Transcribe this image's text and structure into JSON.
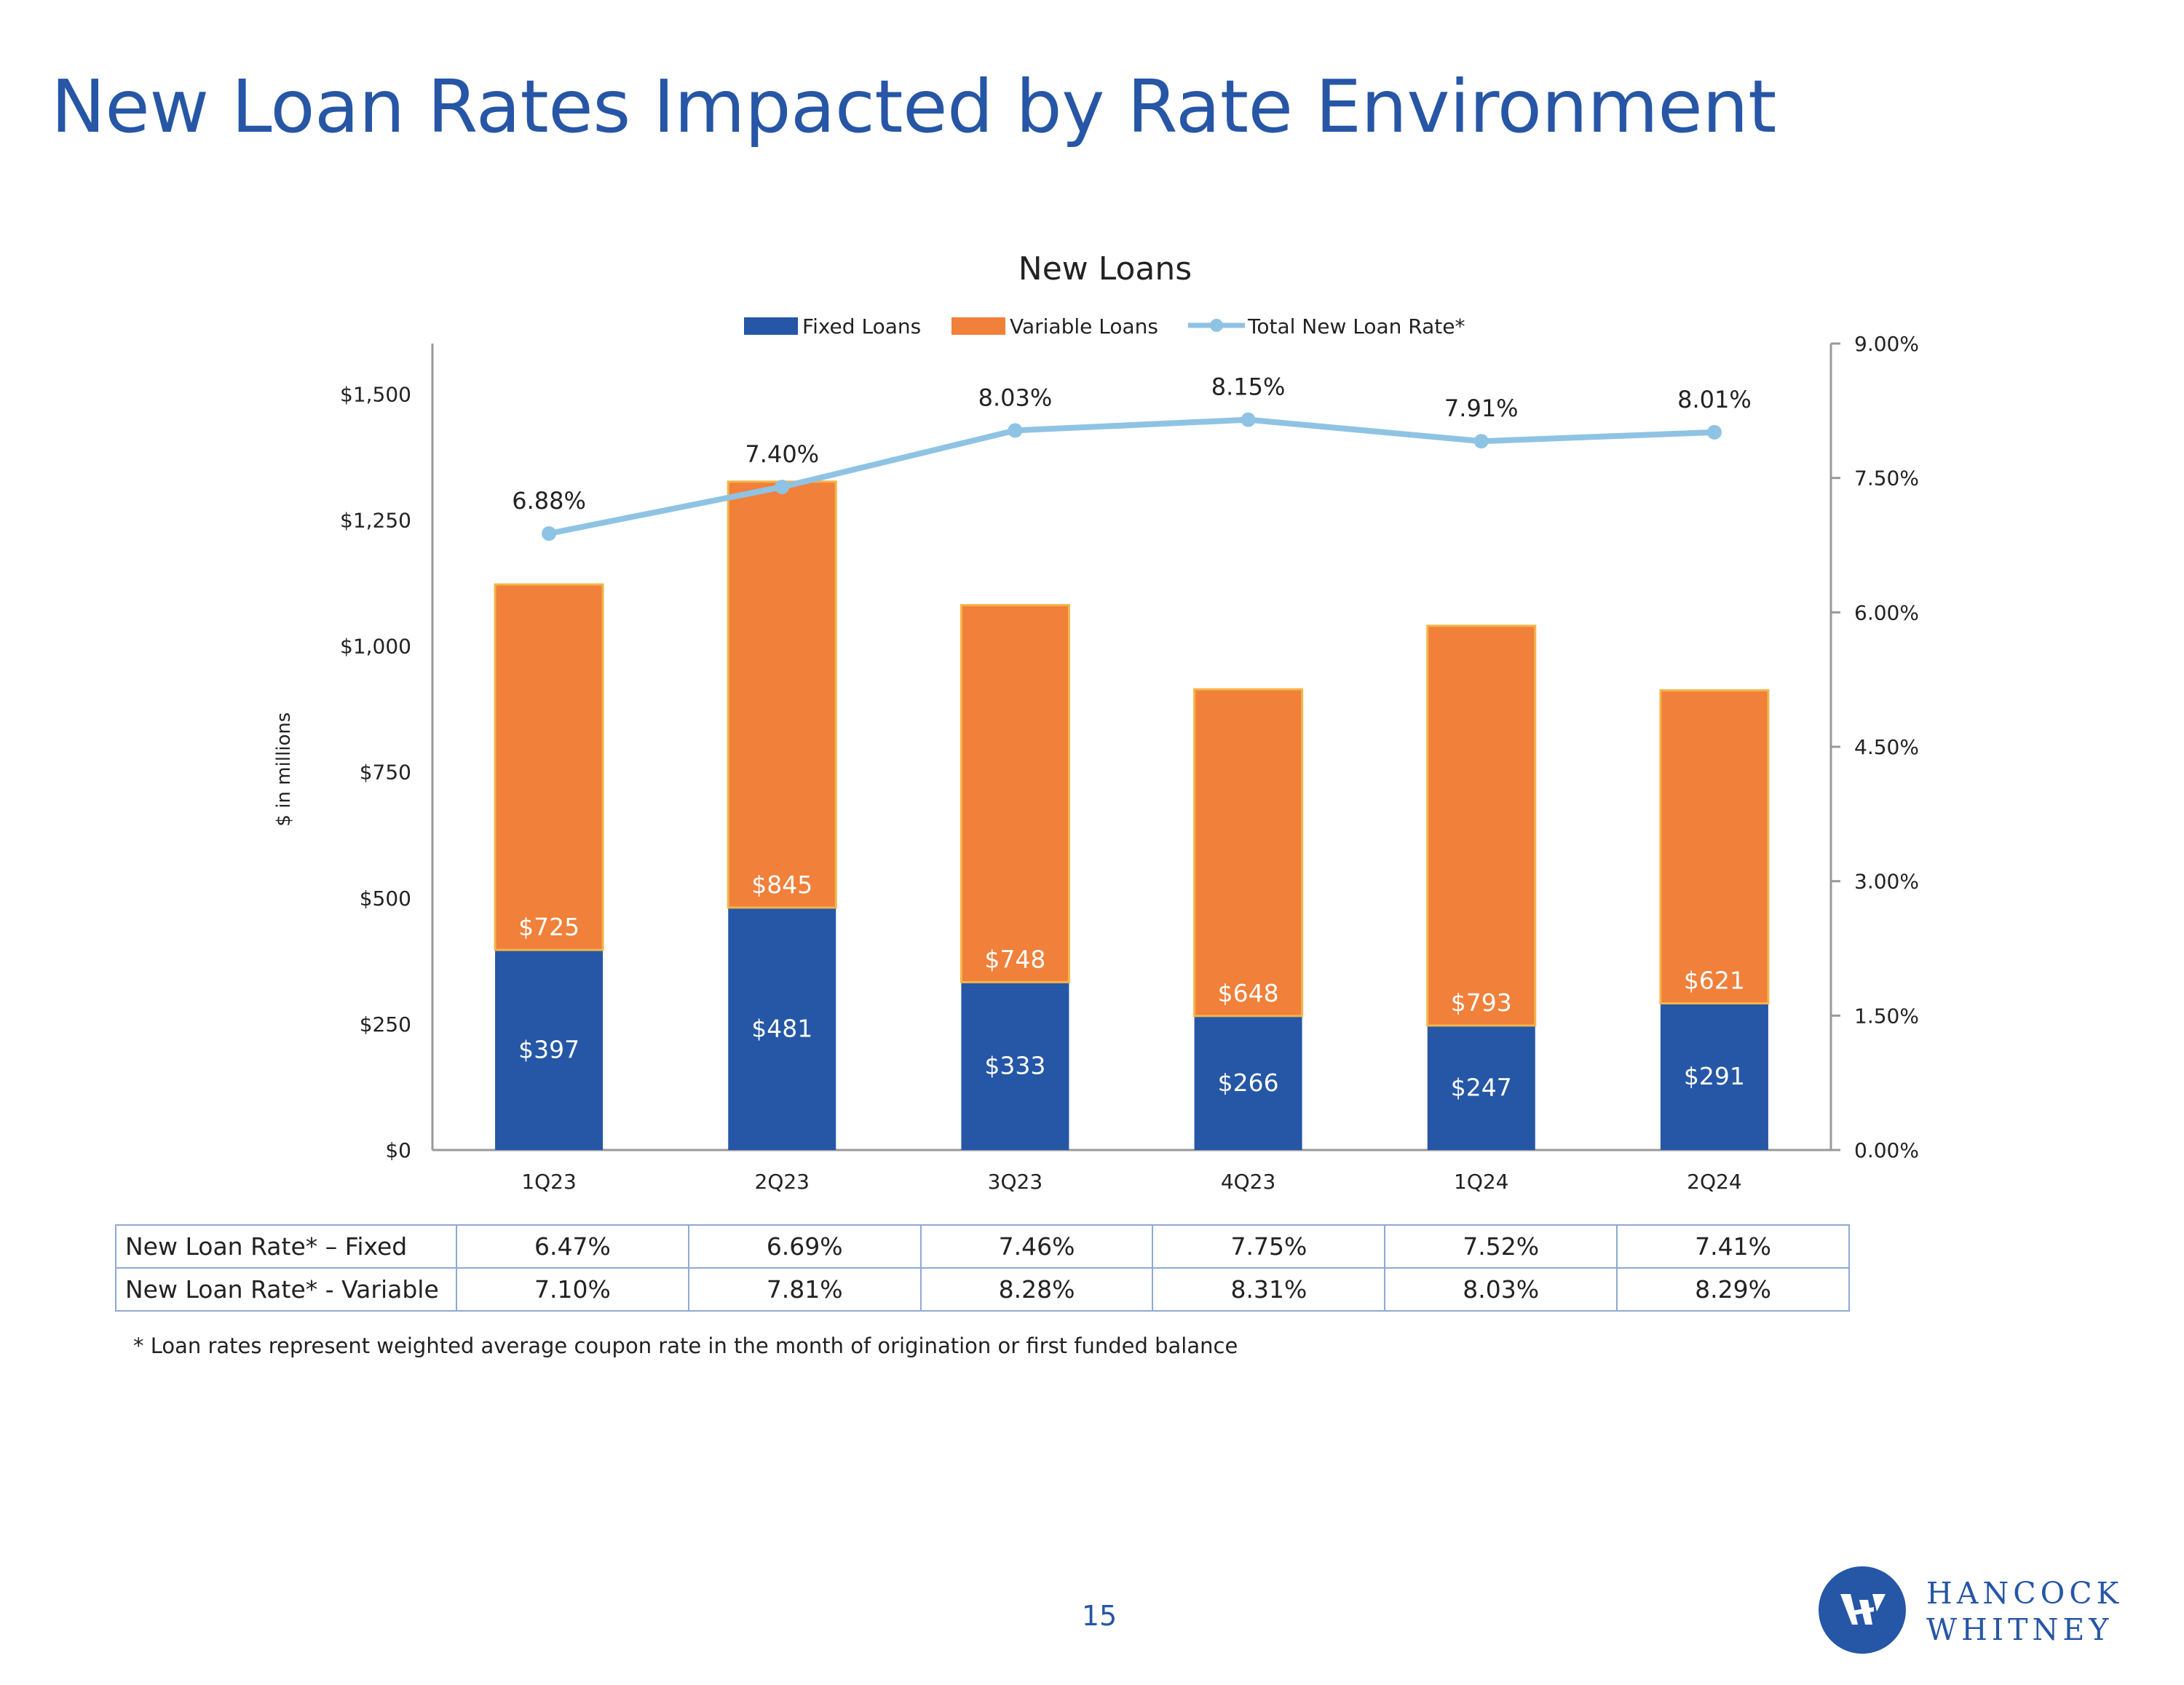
{
  "page": {
    "title": "New Loan Rates Impacted by Rate Environment",
    "page_number": "15",
    "footnote": "* Loan rates represent weighted average coupon rate in the month of origination or first funded balance",
    "logo": {
      "line1": "HANCOCK",
      "line2": "WHITNEY"
    }
  },
  "colors": {
    "fixed": "#2557a6",
    "variable": "#f0803a",
    "rate_line": "#8fc3e4",
    "title": "#2656a5"
  },
  "chart_data": {
    "type": "bar",
    "stacked": true,
    "title": "New Loans",
    "ylabel": "$ in millions",
    "categories": [
      "1Q23",
      "2Q23",
      "3Q23",
      "4Q23",
      "1Q24",
      "2Q24"
    ],
    "y_left": {
      "min": 0,
      "max": 1600,
      "ticks": [
        0,
        250,
        500,
        750,
        1000,
        1250,
        1500
      ],
      "tick_labels": [
        "$0",
        "$250",
        "$500",
        "$750",
        "$1,000",
        "$1,250",
        "$1,500"
      ]
    },
    "y_right": {
      "min": 0,
      "max": 9,
      "ticks": [
        0,
        1.5,
        3,
        4.5,
        6,
        7.5,
        9
      ],
      "tick_labels": [
        "0.00%",
        "1.50%",
        "3.00%",
        "4.50%",
        "6.00%",
        "7.50%",
        "9.00%"
      ]
    },
    "series": [
      {
        "name": "Fixed Loans",
        "type": "bar",
        "values": [
          397,
          481,
          333,
          266,
          247,
          291
        ],
        "labels": [
          "$397",
          "$481",
          "$333",
          "$266",
          "$247",
          "$291"
        ]
      },
      {
        "name": "Variable Loans",
        "type": "bar",
        "values": [
          725,
          845,
          748,
          648,
          793,
          621
        ],
        "labels": [
          "$725",
          "$845",
          "$748",
          "$648",
          "$793",
          "$621"
        ]
      },
      {
        "name": "Total New Loan Rate*",
        "type": "line",
        "axis": "right",
        "values": [
          6.88,
          7.4,
          8.03,
          8.15,
          7.91,
          8.01
        ],
        "labels": [
          "6.88%",
          "7.40%",
          "8.03%",
          "8.15%",
          "7.91%",
          "8.01%"
        ]
      }
    ],
    "legend": [
      "Fixed Loans",
      "Variable Loans",
      "Total New Loan Rate*"
    ],
    "legend_position": "top"
  },
  "rate_table": {
    "rows": [
      {
        "label": "New Loan Rate* – Fixed",
        "values": [
          "6.47%",
          "6.69%",
          "7.46%",
          "7.75%",
          "7.52%",
          "7.41%"
        ]
      },
      {
        "label": "New Loan Rate* - Variable",
        "values": [
          "7.10%",
          "7.81%",
          "8.28%",
          "8.31%",
          "8.03%",
          "8.29%"
        ]
      }
    ]
  }
}
